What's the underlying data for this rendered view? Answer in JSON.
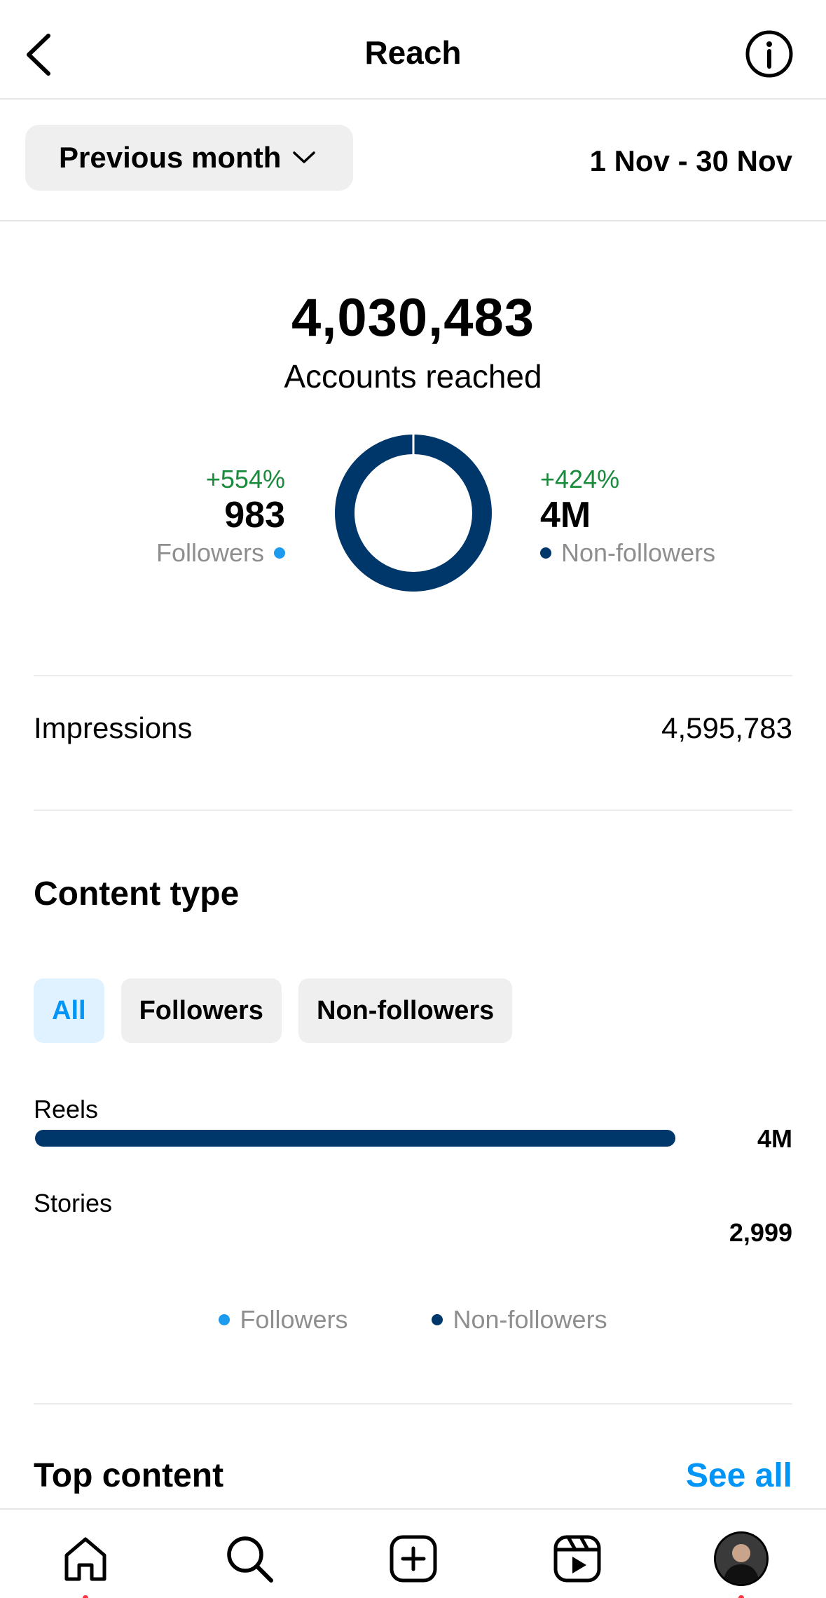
{
  "header": {
    "title": "Reach"
  },
  "filter": {
    "period": "Previous month",
    "date_range": "1 Nov - 30 Nov"
  },
  "summary": {
    "total": "4,030,483",
    "total_label": "Accounts reached",
    "followers": {
      "change": "+554%",
      "value": "983",
      "label": "Followers"
    },
    "non_followers": {
      "change": "+424%",
      "value": "4M",
      "label": "Non-followers"
    }
  },
  "impressions": {
    "label": "Impressions",
    "value": "4,595,783"
  },
  "content_type": {
    "title": "Content type",
    "chips": [
      {
        "label": "All",
        "active": true
      },
      {
        "label": "Followers",
        "active": false
      },
      {
        "label": "Non-followers",
        "active": false
      }
    ],
    "rows": [
      {
        "label": "Reels",
        "value": "4M",
        "fraction": 1.0
      },
      {
        "label": "Stories",
        "value": "2,999",
        "fraction": 0.0
      }
    ],
    "legend": [
      "Followers",
      "Non-followers"
    ]
  },
  "top_content": {
    "title": "Top content",
    "see_all": "See all"
  },
  "chart_data": {
    "type": "pie",
    "categories": [
      "Followers",
      "Non-followers"
    ],
    "values": [
      983,
      4029500
    ],
    "colors": [
      "#1c9bef",
      "#00376b"
    ]
  },
  "colors": {
    "accent": "#0095f6",
    "dark_blue": "#00376b",
    "light_blue": "#1c9bef",
    "positive": "#1a8a3c"
  },
  "nav": {
    "items": [
      "home-icon",
      "search-icon",
      "create-icon",
      "reels-icon",
      "profile-avatar"
    ]
  }
}
